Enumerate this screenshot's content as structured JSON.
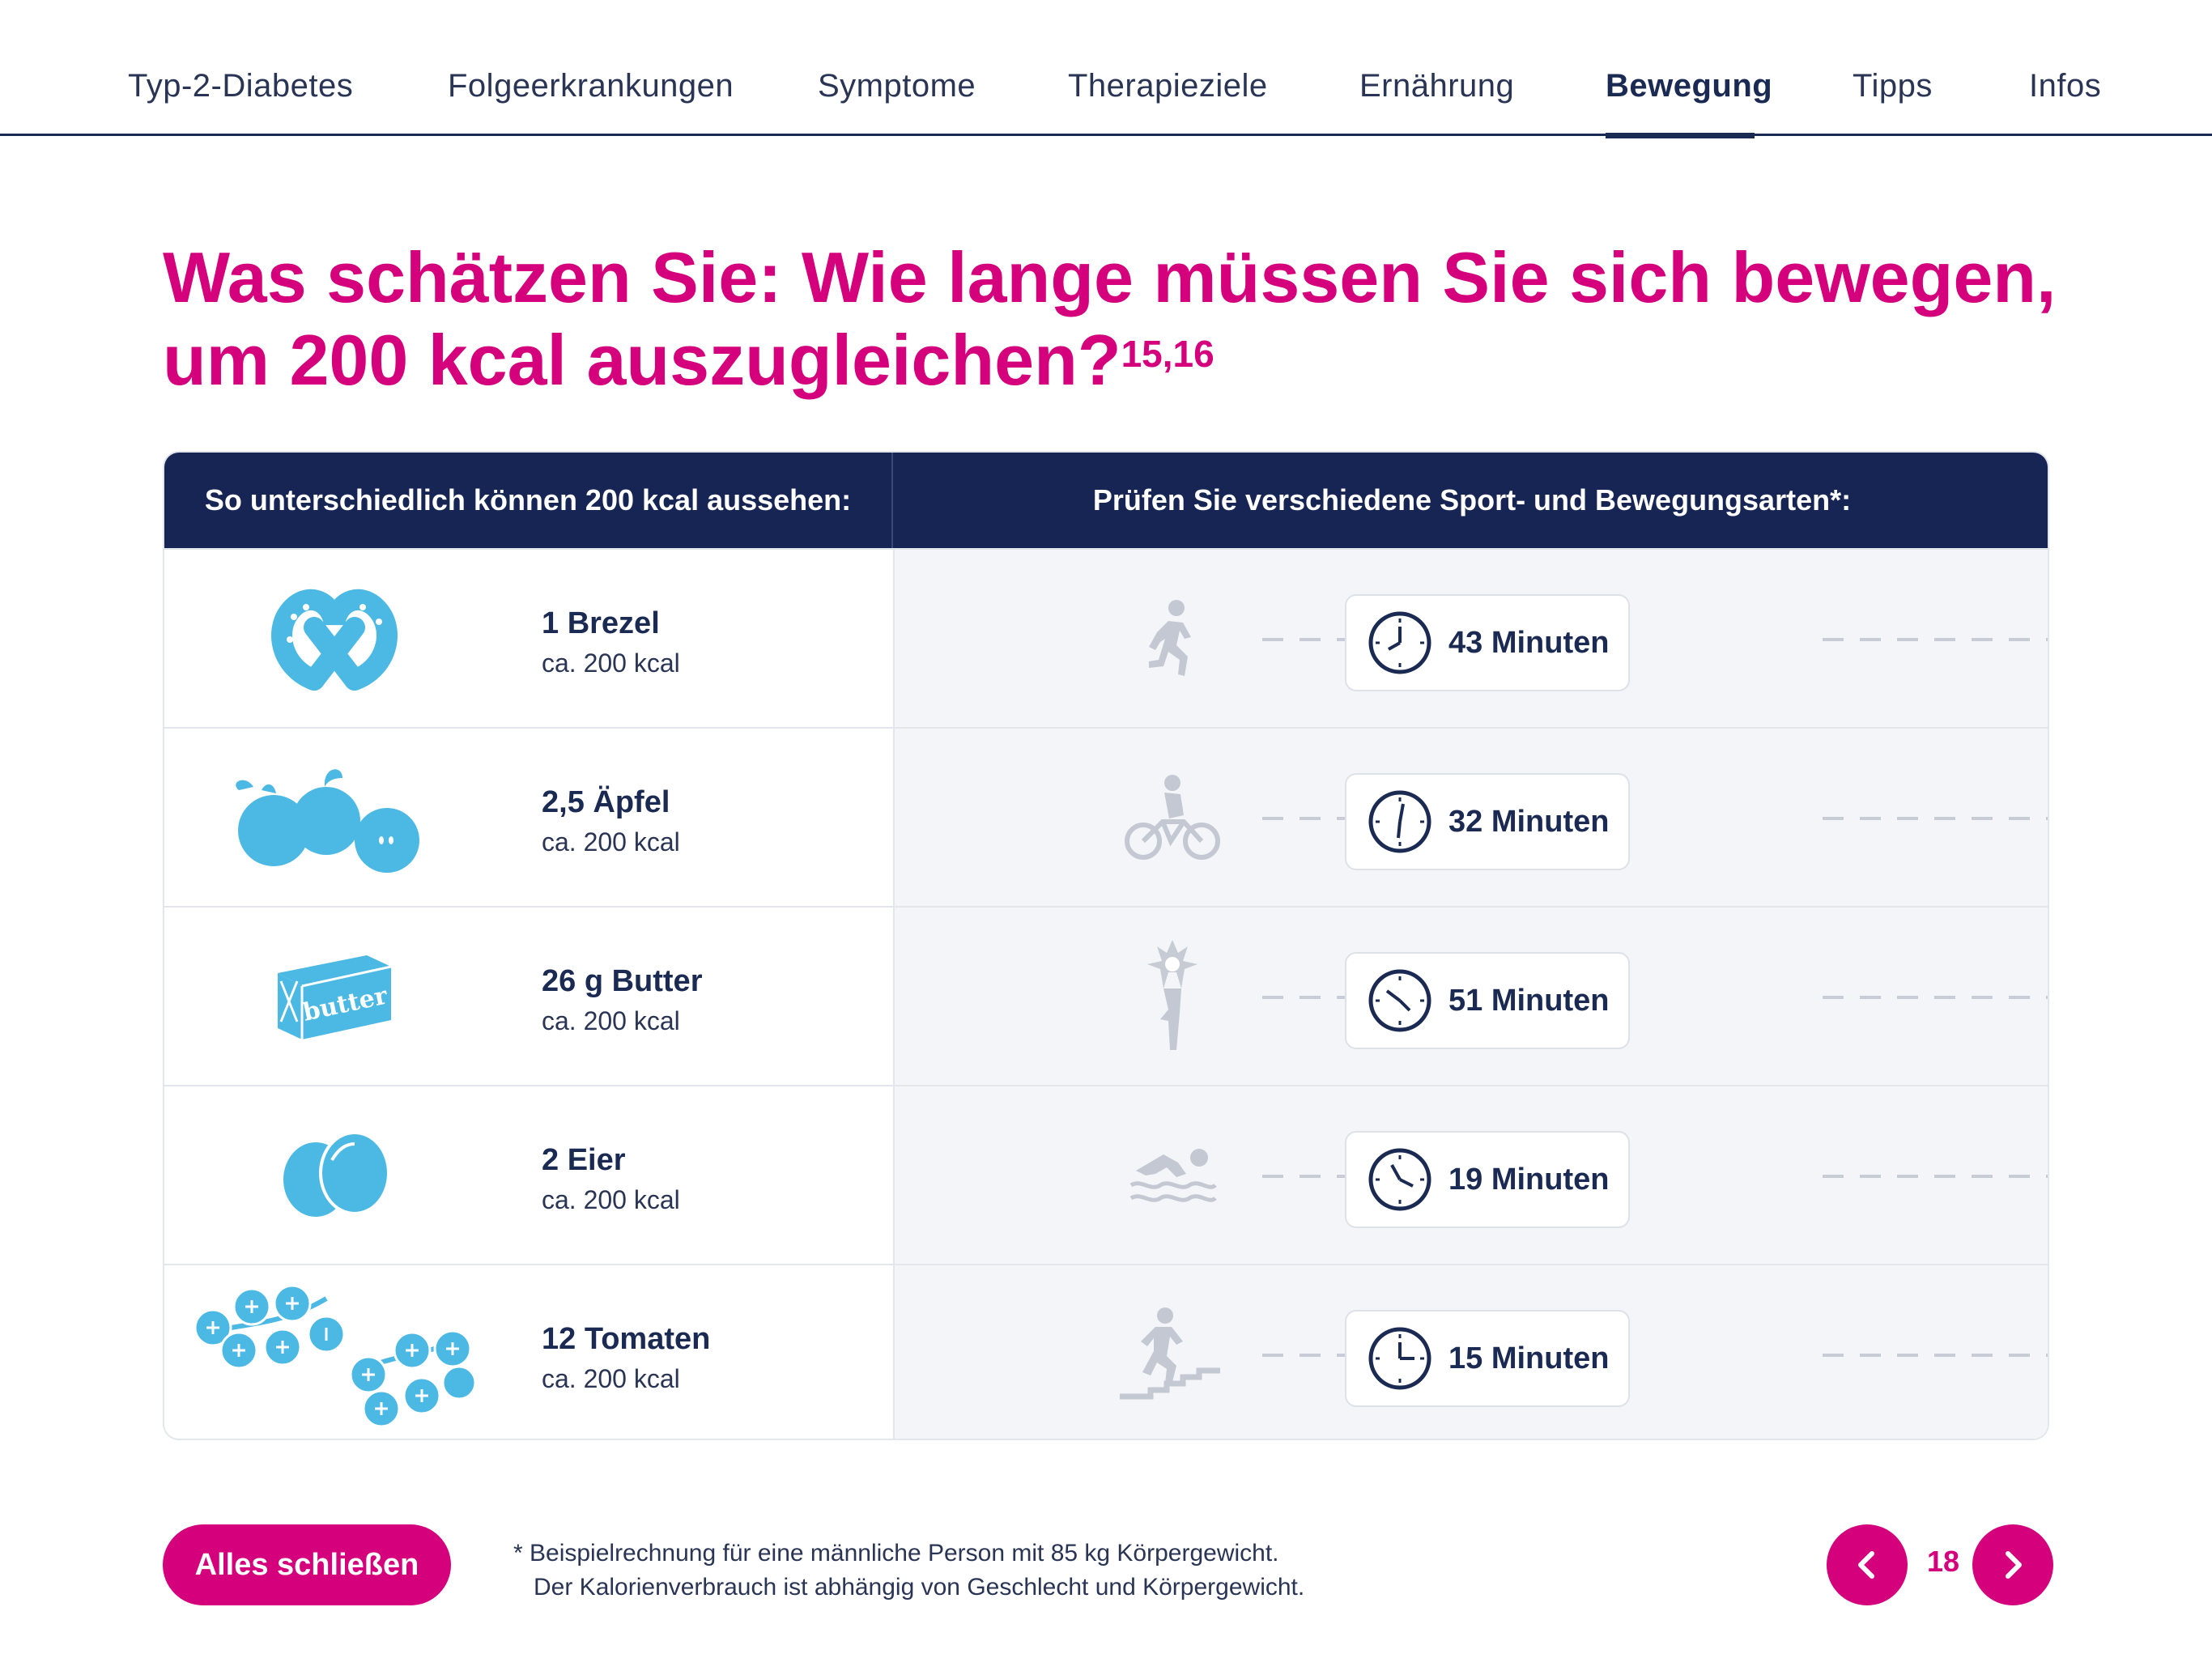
{
  "nav": {
    "items": [
      "Typ-2-Diabetes",
      "Folgeerkrankungen",
      "Symptome",
      "Therapieziele",
      "Ernährung",
      "Bewegung",
      "Tipps",
      "Infos"
    ],
    "active": "Bewegung"
  },
  "headline": {
    "line1": "Was schätzen Sie: Wie lange müssen Sie sich bewegen,",
    "line2": "um 200 kcal auszugleichen?",
    "refs": "15,16"
  },
  "table": {
    "header_left": "So unterschiedlich können 200 kcal aussehen:",
    "header_right": "Prüfen Sie verschiedene Sport- und Bewegungsarten*:",
    "rows": [
      {
        "food": "1 Brezel",
        "kcal": "ca. 200 kcal",
        "food_icon": "pretzel-icon",
        "activity_icon": "running-icon",
        "time": "43 Minuten"
      },
      {
        "food": "2,5 Äpfel",
        "kcal": "ca. 200 kcal",
        "food_icon": "apples-icon",
        "activity_icon": "cycling-icon",
        "time": "32 Minuten"
      },
      {
        "food": "26 g Butter",
        "kcal": "ca. 200 kcal",
        "food_icon": "butter-icon",
        "butter_label": "butter",
        "activity_icon": "yoga-icon",
        "time": "51 Minuten"
      },
      {
        "food": "2 Eier",
        "kcal": "ca. 200 kcal",
        "food_icon": "eggs-icon",
        "activity_icon": "swimming-icon",
        "time": "19 Minuten"
      },
      {
        "food": "12 Tomaten",
        "kcal": "ca. 200 kcal",
        "food_icon": "tomatoes-icon",
        "activity_icon": "stairs-icon",
        "time": "15 Minuten"
      }
    ]
  },
  "footer": {
    "close_label": "Alles schließen",
    "footnote_line1": "* Beispielrechnung für eine männliche Person mit 85 kg Körpergewicht.",
    "footnote_line2": "   Der Kalorienverbrauch ist abhängig von Geschlecht und Körpergewicht.",
    "page": "18"
  },
  "colors": {
    "accent": "#d4007c",
    "navy": "#172554",
    "food_icon": "#4bb9e4",
    "activity_icon": "#c3c8d2"
  }
}
